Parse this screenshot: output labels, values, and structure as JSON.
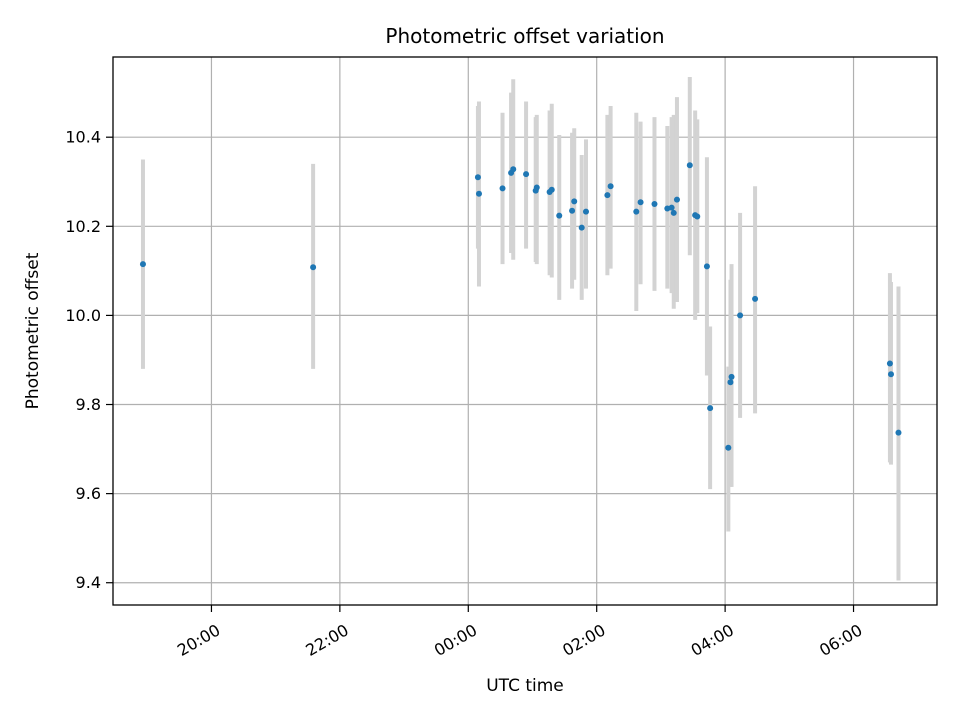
{
  "chart_data": {
    "type": "scatter",
    "title": "Photometric offset variation",
    "xlabel": "UTC time",
    "ylabel": "Photometric offset",
    "x_unit": "UTC time (HH:MM)",
    "xlim": [
      "18:28",
      "07:18"
    ],
    "ylim": [
      9.35,
      10.58
    ],
    "x_ticks": [
      "20:00",
      "22:00",
      "00:00",
      "02:00",
      "04:00",
      "06:00"
    ],
    "y_ticks": [
      9.4,
      9.6,
      9.8,
      10.0,
      10.2,
      10.4
    ],
    "y_tick_labels": [
      "9.4",
      "9.6",
      "9.8",
      "10.0",
      "10.2",
      "10.4"
    ],
    "grid": true,
    "colors": {
      "points": "#1f77b4",
      "error_bars": "#d3d3d3",
      "grid": "#b0b0b0"
    },
    "series": [
      {
        "points": [
          {
            "x": "18:56",
            "y": 10.115,
            "ylow": 9.88,
            "yhigh": 10.35
          },
          {
            "x": "21:35",
            "y": 10.108,
            "ylow": 9.88,
            "yhigh": 10.34
          },
          {
            "x": "00:09",
            "y": 10.31,
            "ylow": 10.15,
            "yhigh": 10.47
          },
          {
            "x": "00:10",
            "y": 10.273,
            "ylow": 10.065,
            "yhigh": 10.48
          },
          {
            "x": "00:32",
            "y": 10.285,
            "ylow": 10.115,
            "yhigh": 10.455
          },
          {
            "x": "00:40",
            "y": 10.32,
            "ylow": 10.14,
            "yhigh": 10.5
          },
          {
            "x": "00:42",
            "y": 10.328,
            "ylow": 10.125,
            "yhigh": 10.53
          },
          {
            "x": "00:54",
            "y": 10.317,
            "ylow": 10.15,
            "yhigh": 10.48
          },
          {
            "x": "01:03",
            "y": 10.28,
            "ylow": 10.12,
            "yhigh": 10.445
          },
          {
            "x": "01:04",
            "y": 10.287,
            "ylow": 10.115,
            "yhigh": 10.45
          },
          {
            "x": "01:16",
            "y": 10.277,
            "ylow": 10.09,
            "yhigh": 10.46
          },
          {
            "x": "01:18",
            "y": 10.282,
            "ylow": 10.085,
            "yhigh": 10.475
          },
          {
            "x": "01:25",
            "y": 10.224,
            "ylow": 10.035,
            "yhigh": 10.405
          },
          {
            "x": "01:37",
            "y": 10.235,
            "ylow": 10.06,
            "yhigh": 10.41
          },
          {
            "x": "01:39",
            "y": 10.256,
            "ylow": 10.08,
            "yhigh": 10.42
          },
          {
            "x": "01:46",
            "y": 10.197,
            "ylow": 10.035,
            "yhigh": 10.36
          },
          {
            "x": "01:50",
            "y": 10.233,
            "ylow": 10.06,
            "yhigh": 10.395
          },
          {
            "x": "02:10",
            "y": 10.27,
            "ylow": 10.09,
            "yhigh": 10.45
          },
          {
            "x": "02:13",
            "y": 10.29,
            "ylow": 10.105,
            "yhigh": 10.47
          },
          {
            "x": "02:37",
            "y": 10.233,
            "ylow": 10.01,
            "yhigh": 10.455
          },
          {
            "x": "02:41",
            "y": 10.254,
            "ylow": 10.07,
            "yhigh": 10.435
          },
          {
            "x": "02:54",
            "y": 10.25,
            "ylow": 10.055,
            "yhigh": 10.445
          },
          {
            "x": "03:06",
            "y": 10.24,
            "ylow": 10.06,
            "yhigh": 10.425
          },
          {
            "x": "03:10",
            "y": 10.242,
            "ylow": 10.05,
            "yhigh": 10.445
          },
          {
            "x": "03:12",
            "y": 10.23,
            "ylow": 10.015,
            "yhigh": 10.45
          },
          {
            "x": "03:15",
            "y": 10.26,
            "ylow": 10.03,
            "yhigh": 10.49
          },
          {
            "x": "03:27",
            "y": 10.337,
            "ylow": 10.135,
            "yhigh": 10.535
          },
          {
            "x": "03:32",
            "y": 10.225,
            "ylow": 9.99,
            "yhigh": 10.46
          },
          {
            "x": "03:34",
            "y": 10.222,
            "ylow": 10.005,
            "yhigh": 10.44
          },
          {
            "x": "03:43",
            "y": 10.11,
            "ylow": 9.865,
            "yhigh": 10.355
          },
          {
            "x": "03:46",
            "y": 9.792,
            "ylow": 9.61,
            "yhigh": 9.975
          },
          {
            "x": "04:03",
            "y": 9.703,
            "ylow": 9.515,
            "yhigh": 9.885
          },
          {
            "x": "04:05",
            "y": 9.85,
            "ylow": 9.615,
            "yhigh": 10.08
          },
          {
            "x": "04:06",
            "y": 9.862,
            "ylow": 9.615,
            "yhigh": 10.115
          },
          {
            "x": "04:14",
            "y": 10.0,
            "ylow": 9.77,
            "yhigh": 10.23
          },
          {
            "x": "04:28",
            "y": 10.037,
            "ylow": 9.78,
            "yhigh": 10.29
          },
          {
            "x": "06:34",
            "y": 9.892,
            "ylow": 9.67,
            "yhigh": 10.095
          },
          {
            "x": "06:35",
            "y": 9.868,
            "ylow": 9.665,
            "yhigh": 10.075
          },
          {
            "x": "06:42",
            "y": 9.737,
            "ylow": 9.405,
            "yhigh": 10.065
          }
        ]
      }
    ]
  }
}
